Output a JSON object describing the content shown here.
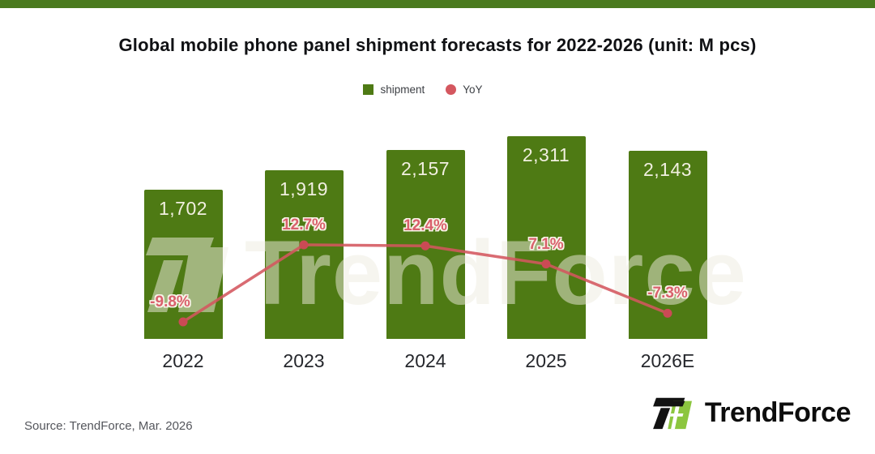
{
  "page": {
    "top_bar_color": "#4a7a1e",
    "background": "#ffffff"
  },
  "header": {
    "title": "Global mobile phone panel shipment forecasts for 2022-2026 (unit: M pcs)"
  },
  "chart_data": {
    "type": "combo-bar-line",
    "title": "Global mobile phone panel shipment forecasts for 2022-2026 (unit: M pcs)",
    "unit": "M pcs",
    "categories": [
      "2022",
      "2023",
      "2024",
      "2025",
      "2026E"
    ],
    "series": [
      {
        "name": "shipment",
        "type": "bar",
        "color": "#4e7a14",
        "values": [
          1702,
          1919,
          2157,
          2311,
          2143
        ],
        "labels": [
          "1,702",
          "1,919",
          "2,157",
          "2,311",
          "2,143"
        ],
        "label_color": "#f1efe0"
      },
      {
        "name": "YoY",
        "type": "line",
        "color": "#d4575f",
        "point_color": "#cb4a55",
        "values": [
          -9.8,
          12.7,
          12.4,
          7.1,
          -7.3
        ],
        "labels": [
          "-9.8%",
          "12.7%",
          "12.4%",
          "7.1%",
          "-7.3%"
        ],
        "label_color": "#d9606c"
      }
    ],
    "legend_position": "top",
    "grid": false,
    "y_axis_visible": false,
    "x_axis_label_color": "#25272c"
  },
  "watermark": {
    "text": "TrendForce"
  },
  "footer": {
    "source": "Source: TrendForce, Mar. 2026",
    "logo_text": "TrendForce"
  }
}
